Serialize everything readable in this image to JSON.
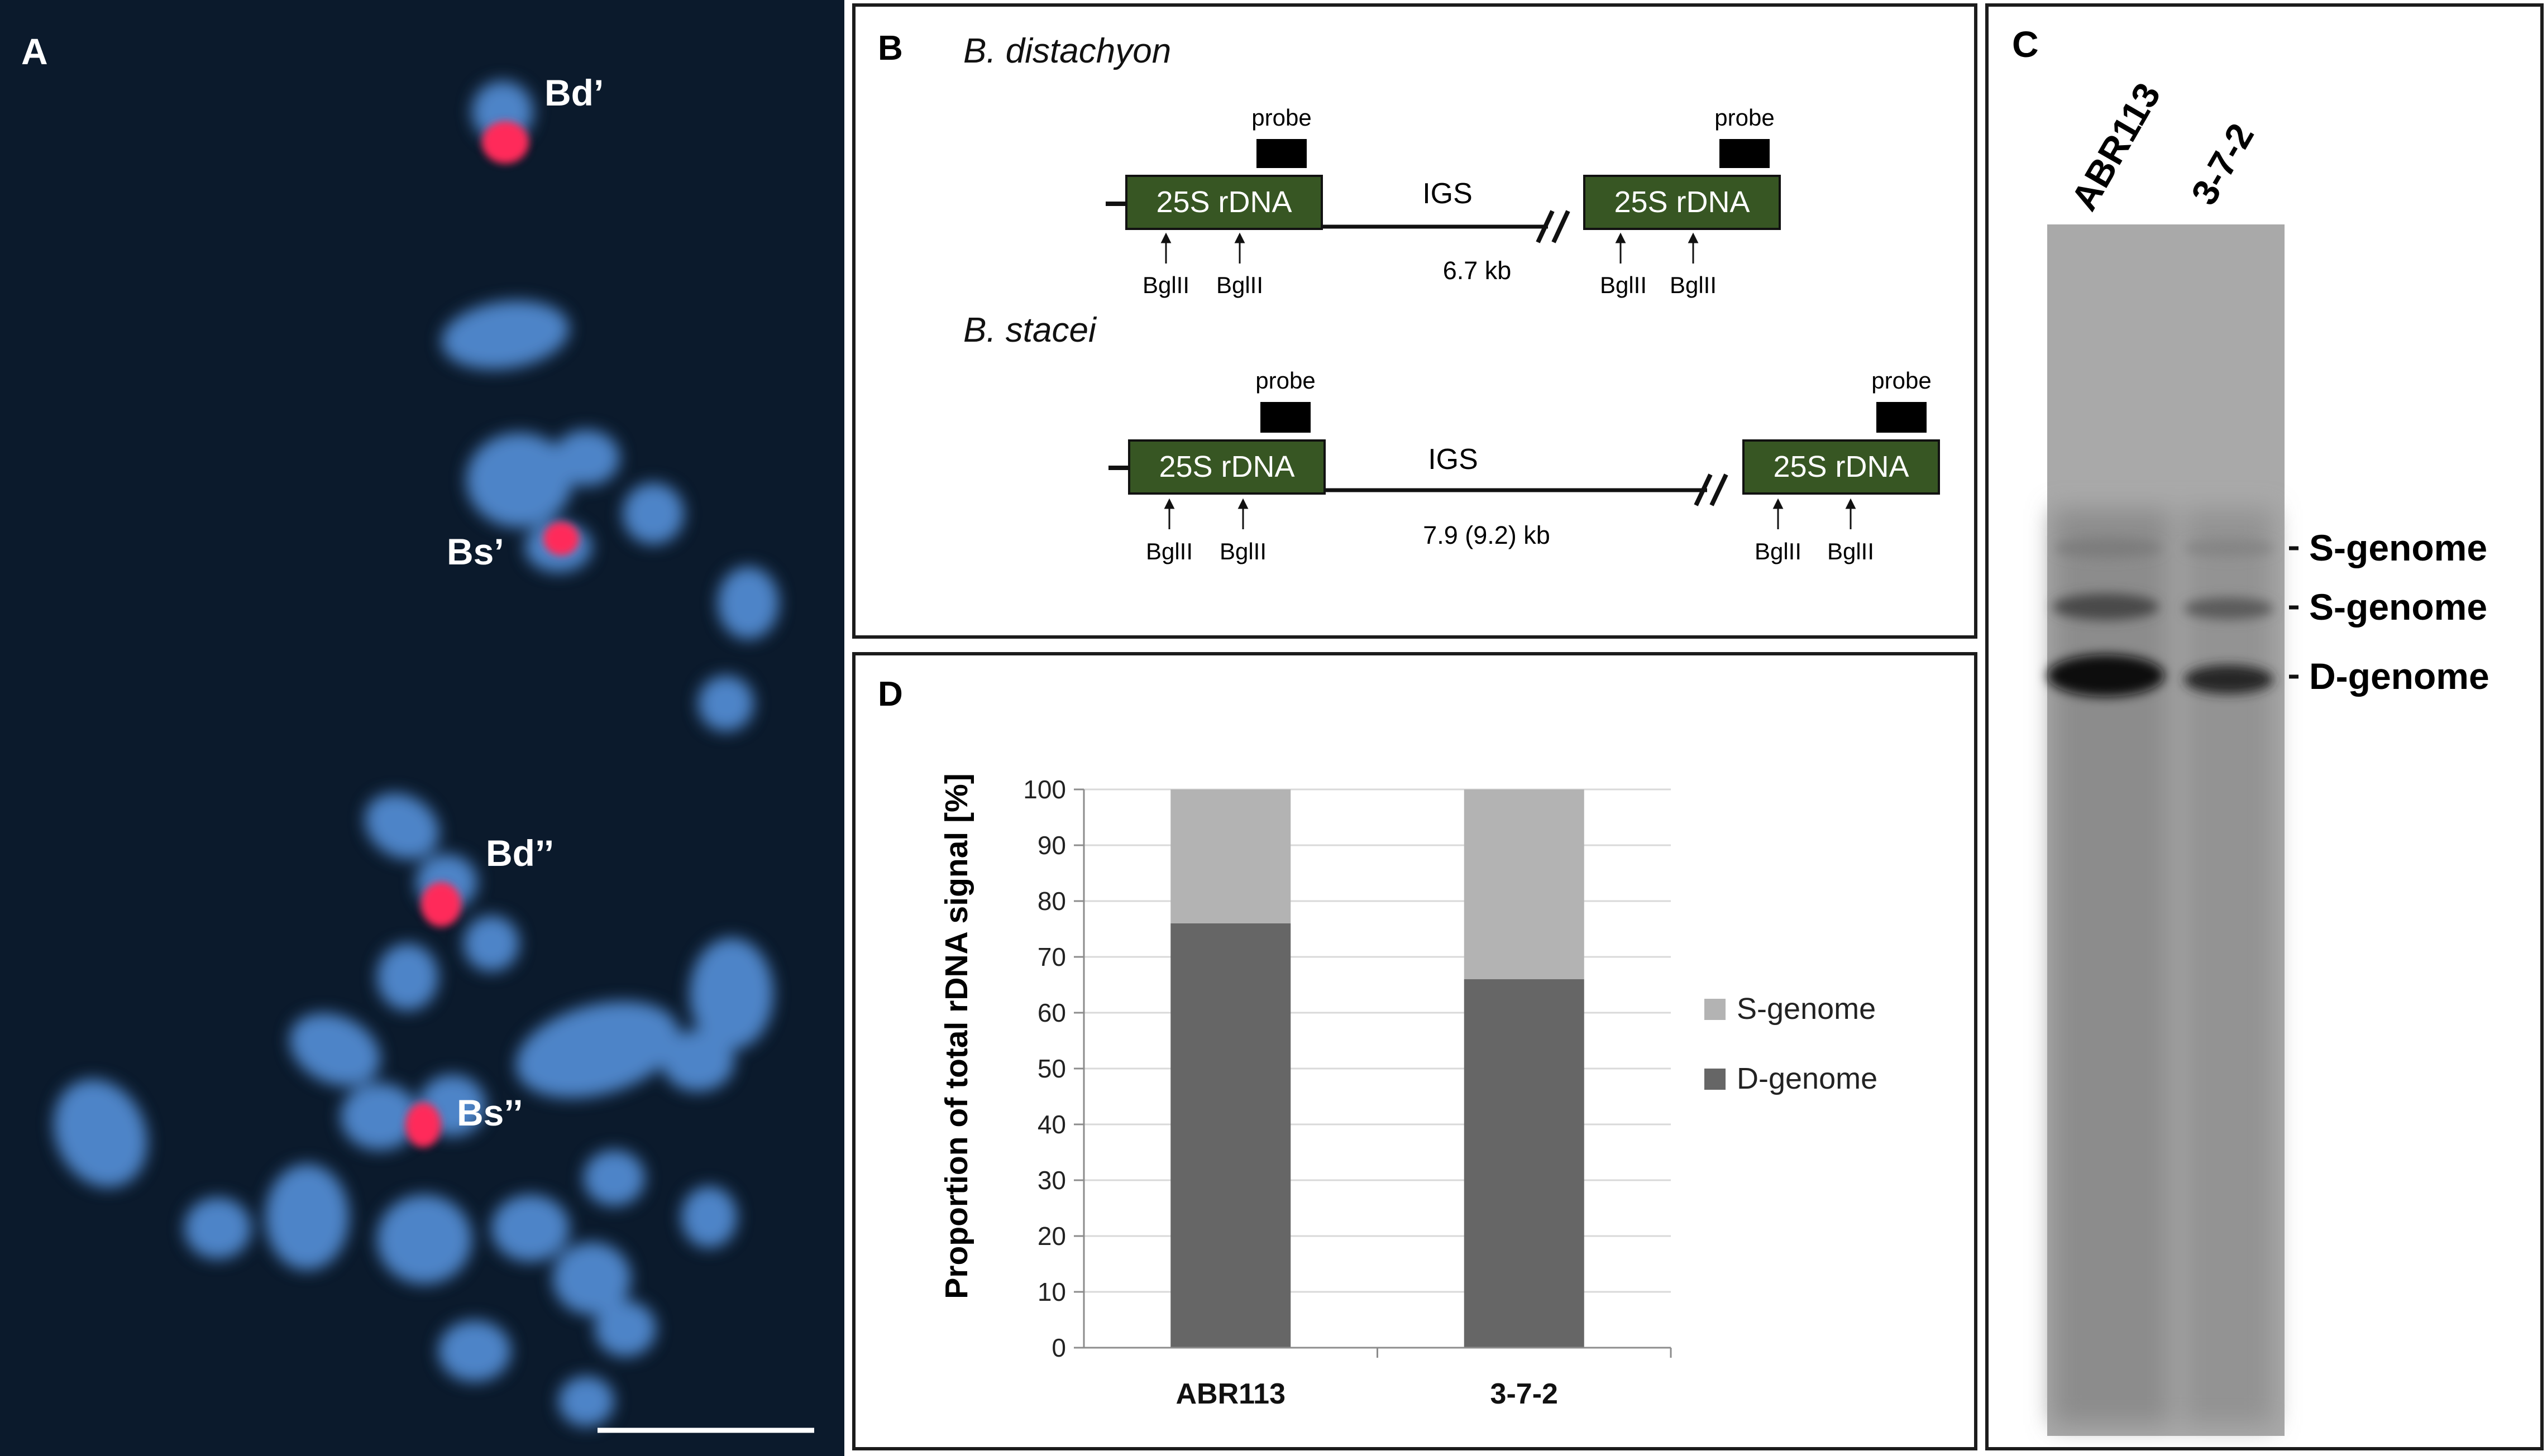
{
  "panelA": {
    "label": "A",
    "signals": {
      "bd1": "Bd’",
      "bs1": "Bs’",
      "bd2": "Bd’’",
      "bs2": "Bs’’"
    }
  },
  "panelB": {
    "label": "B",
    "species1": "B. distachyon",
    "species2": "B. stacei",
    "probe_label": "probe",
    "gene_label": "25S rDNA",
    "igs_label": "IGS",
    "site_label": "BglII",
    "size1": "6.7 kb",
    "size2": "7.9 (9.2) kb",
    "gene_color": "#375623"
  },
  "panelC": {
    "label": "C",
    "lanes": [
      "ABR113",
      "3-7-2"
    ],
    "bands": [
      "S-genome",
      "S-genome",
      "D-genome"
    ]
  },
  "panelD": {
    "label": "D",
    "chart_data": {
      "type": "bar",
      "stacked": true,
      "categories": [
        "ABR113",
        "3-7-2"
      ],
      "series": [
        {
          "name": "D-genome",
          "values": [
            76,
            66
          ],
          "color": "#666666"
        },
        {
          "name": "S-genome",
          "values": [
            24,
            34
          ],
          "color": "#b3b3b3"
        }
      ],
      "ylabel": "Proportion of total rDNA signal [%]",
      "ylim": [
        0,
        100
      ],
      "yticks": [
        0,
        10,
        20,
        30,
        40,
        50,
        60,
        70,
        80,
        90,
        100
      ],
      "grid": true,
      "legend": "right"
    }
  }
}
